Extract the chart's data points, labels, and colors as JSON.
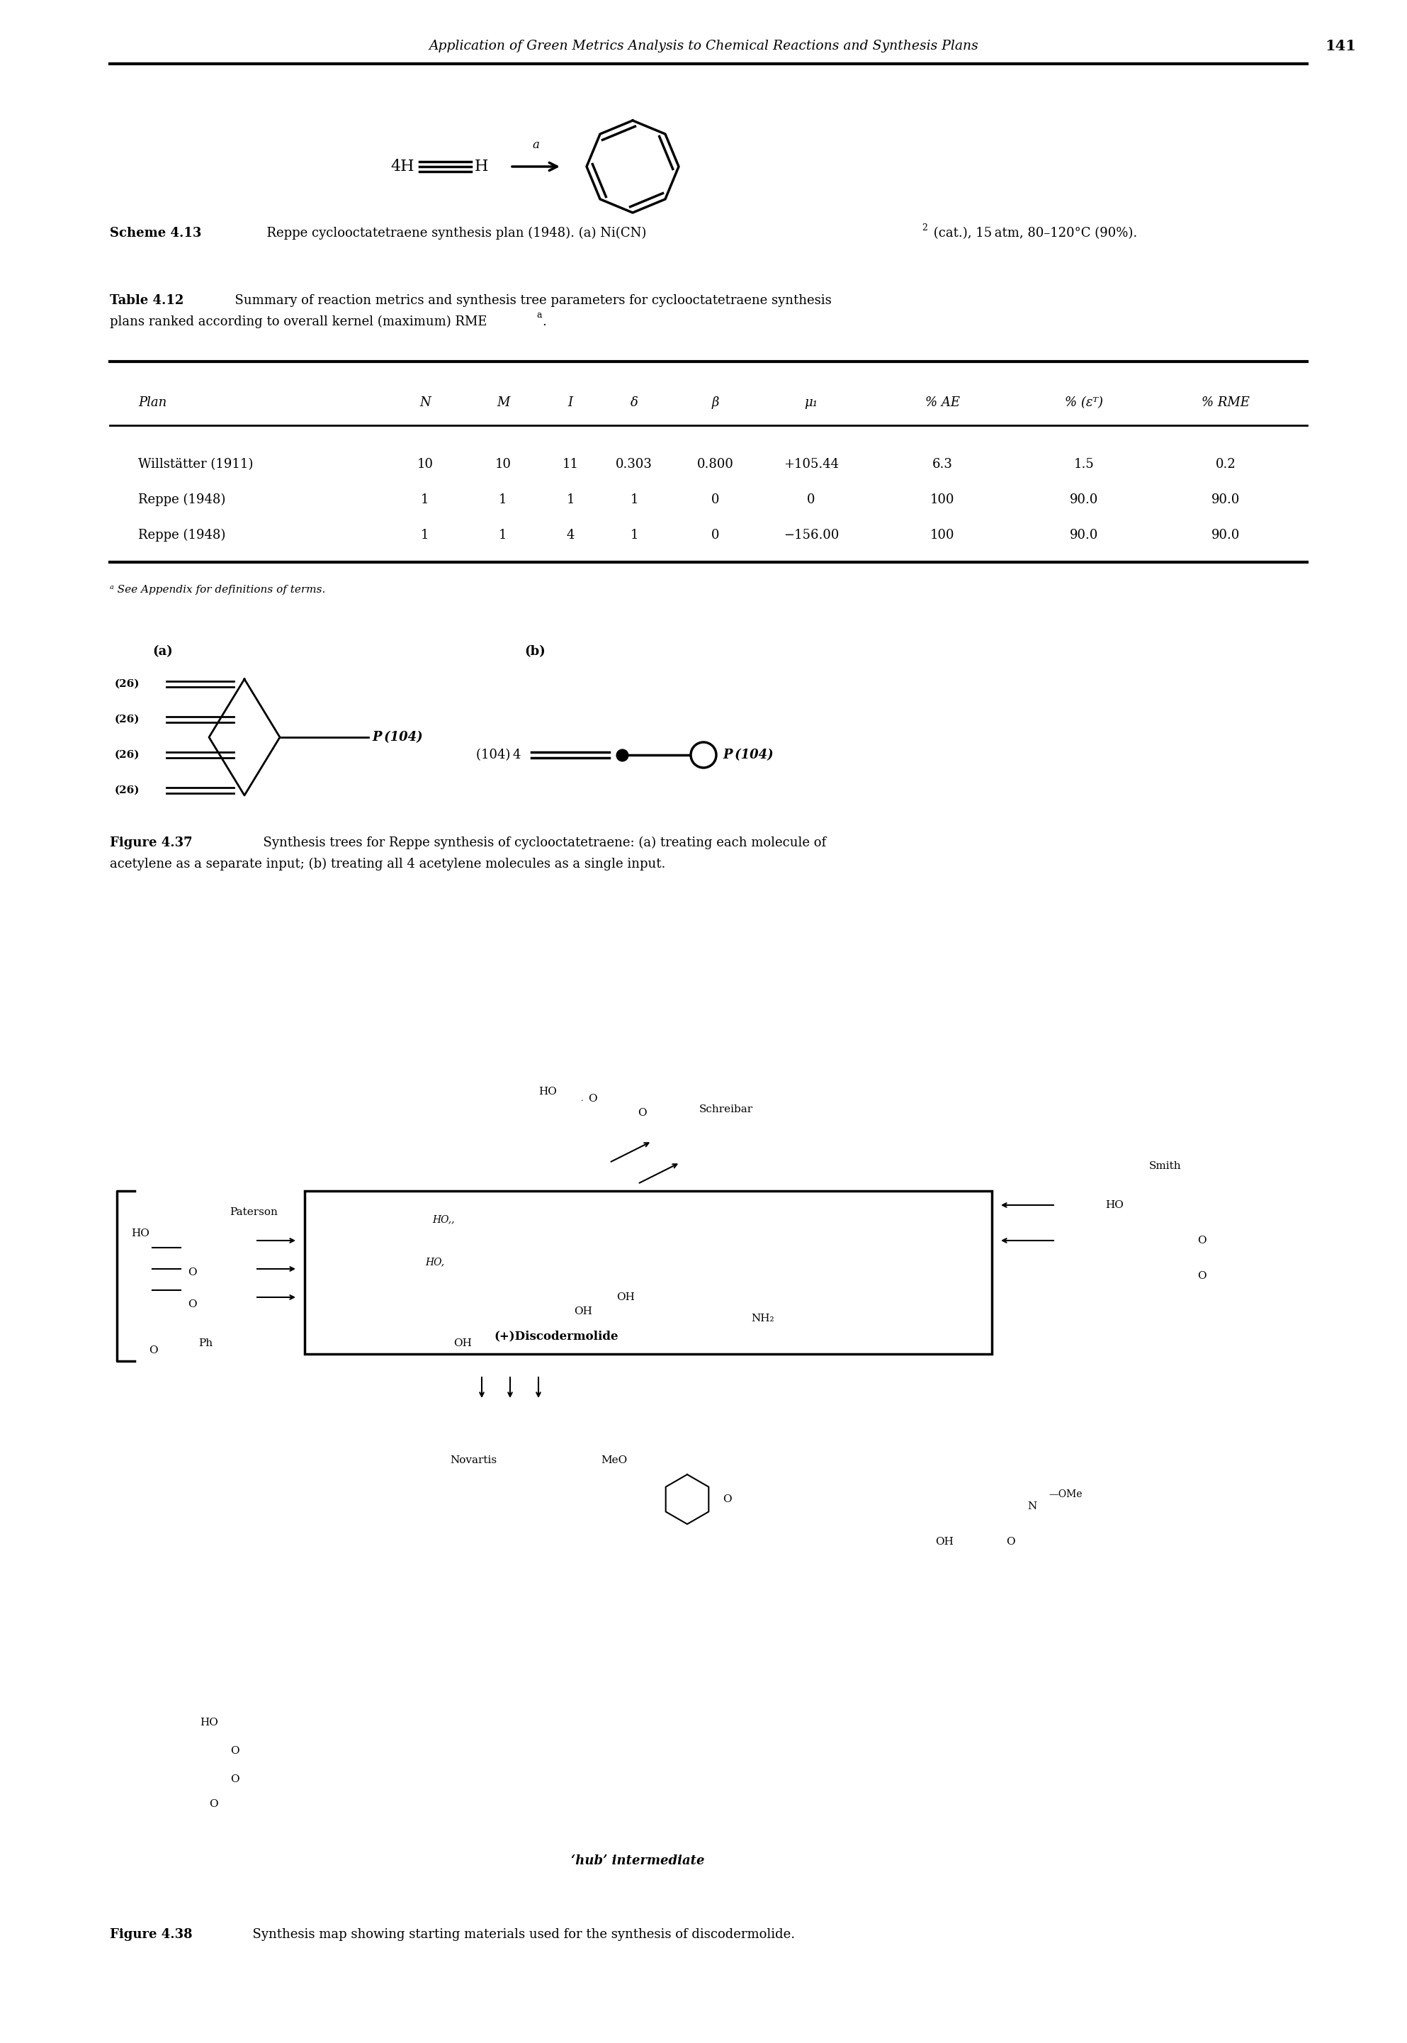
{
  "page_title": "Application of Green Metrics Analysis to Chemical Reactions and Synthesis Plans",
  "page_number": "141",
  "scheme_label": "Scheme 4.13",
  "scheme_caption_plain": "  Reppe cyclooctatetraene synthesis plan (1948). (a) Ni(CN)",
  "scheme_sub": "2",
  "scheme_caption_end": " (cat.), 15 atm, 80–120°C (90%).",
  "table_label": "Table 4.12",
  "table_caption_line1": "  Summary of reaction metrics and synthesis tree parameters for cyclooctatetraene synthesis",
  "table_caption_line2": "plans ranked according to overall kernel (maximum) RME",
  "table_footnote": "ᵃ See Appendix for definitions of terms.",
  "col_headers": [
    "Plan",
    "N",
    "M",
    "I",
    "δ",
    "β",
    "μ₁",
    "% AE",
    "% (εᵀ)",
    "% RME"
  ],
  "rows": [
    [
      "Willstätter (1911)",
      "10",
      "10",
      "11",
      "0.303",
      "0.800",
      "+105.44",
      "6.3",
      "1.5",
      "0.2"
    ],
    [
      "Reppe (1948)",
      "1",
      "1",
      "1",
      "1",
      "0",
      "0",
      "100",
      "90.0",
      "90.0"
    ],
    [
      "Reppe (1948)",
      "1",
      "1",
      "4",
      "1",
      "0",
      "−156.00",
      "100",
      "90.0",
      "90.0"
    ]
  ],
  "fig37_a_label": "(a)",
  "fig37_b_label": "(b)",
  "fig37_caption_bold": "Figure 4.37",
  "fig37_caption_text": "  Synthesis trees for Reppe synthesis of cyclooctatetraene: (a) treating each molecule of acetylene as a separate input; (b) treating all 4 acetylene molecules as a single input.",
  "fig38_caption_bold": "Figure 4.38",
  "fig38_caption_text": "  Synthesis map showing starting materials used for the synthesis of discodermolide.",
  "background_color": "#ffffff"
}
